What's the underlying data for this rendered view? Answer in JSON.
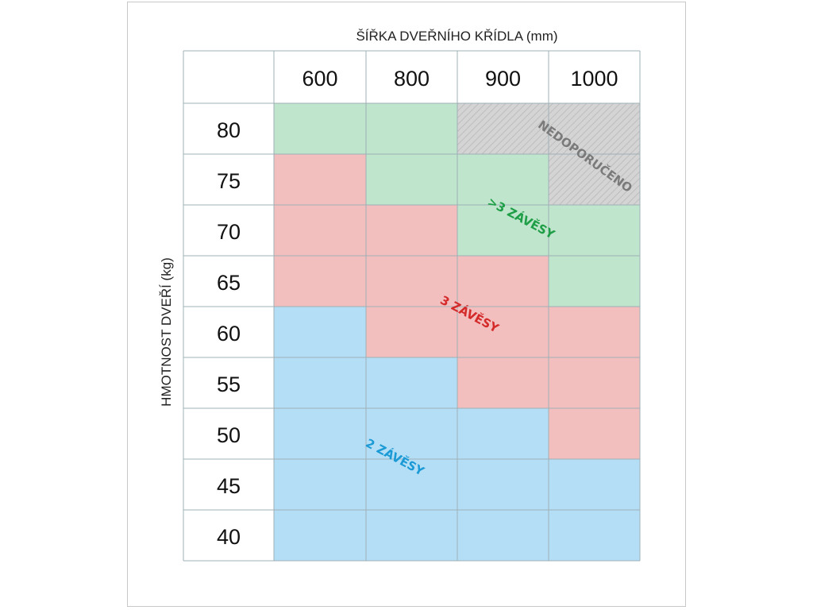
{
  "chart_data": {
    "type": "heatmap",
    "title": "",
    "xlabel": "ŠÍŘKA DVEŘNÍHO KŘÍDLA (mm)",
    "ylabel": "HMOTNOST DVEŘÍ (kg)",
    "x_categories": [
      "600",
      "800",
      "900",
      "1000"
    ],
    "y_categories": [
      "80",
      "75",
      "70",
      "65",
      "60",
      "55",
      "50",
      "45",
      "40"
    ],
    "categories": {
      "blue": "2 ZÁVĚSY",
      "red": "3 ZÁVĚSY",
      "green": ">3 ZÁVĚSY",
      "gray": "NEDOPORUČENO"
    },
    "colors": {
      "blue": "#b3def5",
      "red": "#f3bebe",
      "green": "#bfe5cc",
      "gray": "#d4d4d4",
      "blue_text": "#1b9ad6",
      "red_text": "#d42a2a",
      "green_text": "#1e9e46",
      "gray_text": "#7a7a7a",
      "grid": "#9fb0b6"
    },
    "grid": [
      [
        "green",
        "green",
        "gray",
        "gray"
      ],
      [
        "red",
        "green",
        "green",
        "gray"
      ],
      [
        "red",
        "red",
        "green",
        "green"
      ],
      [
        "red",
        "red",
        "red",
        "green"
      ],
      [
        "blue",
        "red",
        "red",
        "red"
      ],
      [
        "blue",
        "blue",
        "red",
        "red"
      ],
      [
        "blue",
        "blue",
        "blue",
        "red"
      ],
      [
        "blue",
        "blue",
        "blue",
        "blue"
      ],
      [
        "blue",
        "blue",
        "blue",
        "blue"
      ]
    ]
  }
}
